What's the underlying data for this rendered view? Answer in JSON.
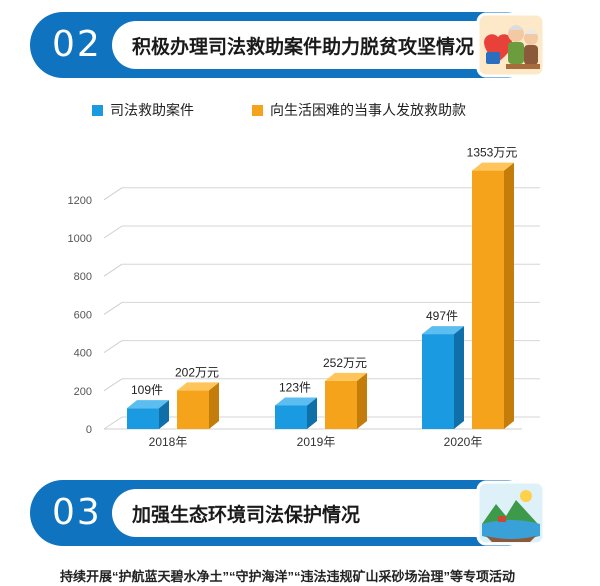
{
  "section2": {
    "num": "02",
    "title": "积极办理司法救助案件助力脱贫攻坚情况"
  },
  "section3": {
    "num": "03",
    "title": "加强生态环境司法保护情况"
  },
  "footer_text": "持续开展“护航蓝天碧水净土”“守护海洋”“违法违规矿山采砂场治理”等专项活动",
  "colors": {
    "banner": "#0f73bf",
    "blue": "#1a9ae0",
    "orange": "#f5a31a"
  },
  "chart_data": {
    "type": "bar",
    "categories": [
      "2018年",
      "2019年",
      "2020年"
    ],
    "series": [
      {
        "name": "司法救助案件",
        "values": [
          109,
          123,
          497
        ],
        "labels": [
          "109件",
          "123件",
          "497件"
        ],
        "color": "#1a9ae0"
      },
      {
        "name": "向生活困难的当事人发放救助款",
        "values": [
          202,
          252,
          1353
        ],
        "labels": [
          "202万元",
          "252万元",
          "1353万元"
        ],
        "color": "#f5a31a"
      }
    ],
    "y_ticks": [
      "0",
      "200",
      "400",
      "600",
      "800",
      "1000",
      "1200"
    ],
    "ylim": [
      0,
      1400
    ],
    "grid": true,
    "legend_position": "top"
  }
}
